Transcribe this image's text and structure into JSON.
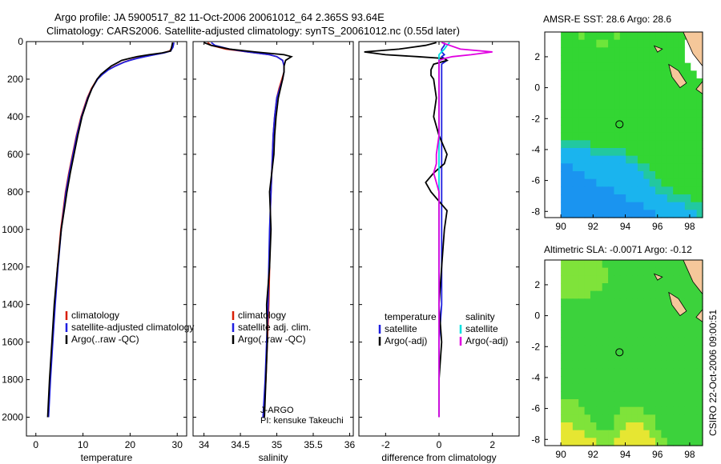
{
  "header": {
    "line1": "Argo profile: JA 5900517_82 11-Oct-2006 20061012_64 2.365S 93.64E",
    "line2": "Climatology: CARS2006. Satellite-adjusted climatology: synTS_20061012.nc (0.55d later)"
  },
  "side_label": "CSIRO 22-Oct-2006 09:00:51",
  "colors": {
    "climatology": "#d81e05",
    "satellite": "#1f1fe0",
    "argo": "#000000",
    "salinity_satellite": "#00e0e0",
    "salinity_argo": "#e000e0",
    "land": "#f5c79a"
  },
  "chart_data": [
    {
      "id": "temperature",
      "type": "line",
      "xlabel": "temperature",
      "ylabel": "",
      "xlim": [
        -2,
        32
      ],
      "ylim": [
        0,
        2100
      ],
      "y_inverted": true,
      "xticks": [
        0,
        10,
        20,
        30
      ],
      "yticks": [
        0,
        200,
        400,
        600,
        800,
        1000,
        1200,
        1400,
        1600,
        1800,
        2000
      ],
      "depth": [
        5,
        30,
        50,
        60,
        70,
        80,
        90,
        100,
        110,
        130,
        150,
        175,
        200,
        250,
        300,
        400,
        500,
        600,
        700,
        800,
        900,
        1000,
        1200,
        1400,
        1600,
        1800,
        2000
      ],
      "legend": [
        "climatology",
        "satellite-adjusted climatology",
        "Argo(..raw -QC)"
      ],
      "legend_position": "bottom-right",
      "series": [
        {
          "name": "climatology",
          "color": "#d81e05",
          "values": [
            29.1,
            28.9,
            28.4,
            27.0,
            25.0,
            23.0,
            21.2,
            19.8,
            18.6,
            16.8,
            15.3,
            14.0,
            13.0,
            11.8,
            10.9,
            9.6,
            8.6,
            7.8,
            7.0,
            6.3,
            5.8,
            5.3,
            4.6,
            4.0,
            3.5,
            3.0,
            2.6
          ]
        },
        {
          "name": "satellite-adjusted climatology",
          "color": "#1f1fe0",
          "values": [
            29.3,
            29.1,
            28.6,
            27.2,
            25.2,
            23.2,
            21.4,
            19.9,
            18.7,
            16.9,
            15.4,
            14.1,
            13.1,
            11.9,
            11.0,
            9.7,
            8.7,
            7.9,
            7.1,
            6.4,
            5.9,
            5.4,
            4.7,
            4.1,
            3.6,
            3.1,
            2.7
          ]
        },
        {
          "name": "Argo(..raw -QC)",
          "color": "#000000",
          "values": [
            29.0,
            28.8,
            28.6,
            26.8,
            24.0,
            21.5,
            19.8,
            18.2,
            17.5,
            16.0,
            15.0,
            13.8,
            13.0,
            11.9,
            11.1,
            9.8,
            8.9,
            8.1,
            7.3,
            6.6,
            6.0,
            5.4,
            4.6,
            3.9,
            3.4,
            2.9,
            2.5
          ]
        }
      ]
    },
    {
      "id": "salinity",
      "type": "line",
      "xlabel": "salinity",
      "ylabel": "",
      "xlim": [
        33.85,
        36.05
      ],
      "ylim": [
        0,
        2100
      ],
      "y_inverted": true,
      "xticks": [
        34,
        34.5,
        35,
        35.5,
        36
      ],
      "yticks": [
        0,
        200,
        400,
        600,
        800,
        1000,
        1200,
        1400,
        1600,
        1800,
        2000
      ],
      "depth": [
        5,
        20,
        40,
        55,
        70,
        80,
        100,
        130,
        160,
        200,
        250,
        300,
        400,
        500,
        600,
        700,
        800,
        900,
        1000,
        1200,
        1400,
        1600,
        1800,
        2000
      ],
      "legend": [
        "climatology",
        "satellite adj. clim.",
        "Argo(..raw -QC)"
      ],
      "legend_position": "bottom-right",
      "annotation": [
        "J-ARGO",
        "PI: kensuke Takeuchi"
      ],
      "series": [
        {
          "name": "climatology",
          "color": "#d81e05",
          "values": [
            34.05,
            34.1,
            34.3,
            34.6,
            34.9,
            35.0,
            35.08,
            35.1,
            35.1,
            35.07,
            35.03,
            35.0,
            34.97,
            34.95,
            34.94,
            34.93,
            34.92,
            34.91,
            34.91,
            34.9,
            34.89,
            34.87,
            34.85,
            34.82
          ]
        },
        {
          "name": "satellite adj. clim.",
          "color": "#1f1fe0",
          "values": [
            34.1,
            34.15,
            34.35,
            34.6,
            34.9,
            35.0,
            35.08,
            35.1,
            35.1,
            35.08,
            35.04,
            35.0,
            34.97,
            34.95,
            34.94,
            34.93,
            34.92,
            34.91,
            34.9,
            34.89,
            34.88,
            34.86,
            34.84,
            34.81
          ]
        },
        {
          "name": "Argo(..raw -QC)",
          "color": "#000000",
          "values": [
            34.0,
            34.1,
            34.35,
            34.7,
            35.1,
            35.2,
            35.12,
            35.1,
            35.1,
            35.08,
            35.05,
            35.02,
            34.99,
            34.97,
            34.96,
            34.93,
            34.9,
            34.91,
            34.92,
            34.9,
            34.86,
            34.87,
            34.85,
            34.83
          ]
        }
      ]
    },
    {
      "id": "difference",
      "type": "line",
      "xlabel": "difference from climatology",
      "ylabel": "",
      "xlim": [
        -3,
        3
      ],
      "ylim": [
        0,
        2100
      ],
      "y_inverted": true,
      "xticks": [
        -2,
        0,
        2
      ],
      "yticks": [
        0,
        200,
        400,
        600,
        800,
        1000,
        1200,
        1400,
        1600,
        1800,
        2000
      ],
      "legend_left_title": "temperature",
      "legend_right_title": "salinity",
      "legend_left": [
        "satellite",
        "Argo(-adj)"
      ],
      "legend_right": [
        "satellite",
        "Argo(-adj)"
      ],
      "legend_position": "bottom",
      "depth": [
        5,
        20,
        40,
        55,
        70,
        80,
        90,
        100,
        120,
        150,
        180,
        200,
        300,
        400,
        500,
        600,
        650,
        700,
        750,
        800,
        900,
        1000,
        1200,
        1400,
        1600,
        1800,
        2000
      ],
      "series": [
        {
          "name": "temperature satellite",
          "color": "#1f1fe0",
          "values": [
            0.2,
            0.2,
            0.1,
            0.1,
            0.2,
            0.1,
            0.2,
            0.3,
            0.1,
            0.1,
            0.1,
            0.1,
            0.1,
            0.1,
            0.1,
            0.1,
            0.1,
            0.1,
            0.1,
            0.1,
            0.1,
            0.1,
            0.1,
            0.1,
            0.0,
            0.0,
            0.0
          ]
        },
        {
          "name": "temperature Argo(-adj)",
          "color": "#000000",
          "values": [
            -0.1,
            -0.5,
            -1.5,
            -2.8,
            -2.0,
            -0.8,
            0.2,
            0.3,
            -0.2,
            -0.3,
            -0.3,
            -0.2,
            -0.1,
            -0.2,
            0.0,
            0.3,
            0.2,
            -0.2,
            -0.5,
            -0.3,
            0.3,
            0.2,
            0.1,
            0.0,
            0.1,
            0.0,
            0.0
          ]
        },
        {
          "name": "salinity satellite",
          "color": "#00e0e0",
          "values": [
            0.4,
            0.3,
            0.2,
            0.1,
            0.0,
            0.0,
            0.0,
            0.0,
            0.0,
            0.0,
            0.0,
            0.0,
            0.0,
            0.0,
            0.0,
            0.0,
            0.0,
            0.0,
            0.0,
            0.0,
            0.0,
            0.0,
            0.0,
            0.0,
            0.0,
            0.0,
            0.0
          ]
        },
        {
          "name": "salinity Argo(-adj)",
          "color": "#e000e0",
          "values": [
            0.1,
            0.4,
            0.8,
            2.0,
            1.2,
            0.5,
            0.2,
            0.0,
            0.0,
            0.0,
            0.0,
            0.0,
            0.0,
            0.0,
            0.0,
            -0.1,
            -0.1,
            -0.2,
            -0.1,
            0.0,
            0.0,
            0.0,
            0.0,
            0.0,
            0.0,
            0.0,
            0.0
          ]
        }
      ]
    },
    {
      "id": "sst_map",
      "type": "heatmap",
      "title": "AMSR-E SST: 28.6 Argo: 28.6",
      "xlim": [
        89.0,
        98.8
      ],
      "ylim": [
        -8.4,
        3.6
      ],
      "xticks": [
        90,
        92,
        94,
        96,
        98
      ],
      "yticks": [
        2,
        0,
        -2,
        -4,
        -6,
        -8
      ],
      "marker": {
        "lon": 93.64,
        "lat": -2.365
      },
      "rows_north_to_south": [
        "GGGLGGGGGLGGGGGGGGGGGGGW",
        "GGGGGGLLGGGGGGGGGGGGGWWW",
        "GGGGGGGGGGGGGGGGGGGGGWWW",
        "GGGGGGGGGGGGGGGGGGGGGWWW",
        "GGGGGGGGGGGGGGGGGGGGGGWW",
        "GGGGGGGGGGGGGGGGGGGGGGGW",
        "GGGGGGGGGGGGGGGGGGGGGGGG",
        "GGGGGGGGGGGGGGGGGGGGGGGG",
        "GGGGGGGGGGGGGGGGGGGGGGGG",
        "GGGGGGGGGGGGGGGGGGGGGGGG",
        "GGGGGGGGGGGGGGGGGGGGGGGG",
        "GGGGGGGGGGGGGGGGGGGGGGGG",
        "GGGGGGGGGGGGGGGGGGGGGGGG",
        "GGGGGGGGGGGGGGGGGGGGGGGG",
        "TTTTTGGGGGGGGGGGGGGGGGGG",
        "CCCCCTTTTTTGGGGGGGGGGGGG",
        "CCCCCCCCCCCTTGGGGGGGGGGG",
        "BBCCCCCCCCCCCTTGGGGGGGGG",
        "BBBBCCCCCCCCCCTTGGGGGGGG",
        "BBBBBBCCCCCCCCCTTGGGGGGG",
        "BBBBBBBBBCCCCCCCTTTGGGGG",
        "BBBBBBBBBBBCCCCCCCTTTTGG",
        "BBBBBBBBBBBBBBCCCCCCCTTT",
        "BBBBBBBBBBBBBBBBCCCCCCCT"
      ],
      "palette": {
        "G": "#33d633",
        "L": "#6ee63a",
        "T": "#22c8a0",
        "C": "#1ab4ee",
        "B": "#1a94f0",
        "W": "#ffffff"
      }
    },
    {
      "id": "sla_map",
      "type": "heatmap",
      "title": "Altimetric SLA: -0.0071 Argo: -0.12",
      "xlim": [
        89.0,
        98.8
      ],
      "ylim": [
        -8.4,
        3.6
      ],
      "xticks": [
        90,
        92,
        94,
        96,
        98
      ],
      "yticks": [
        2,
        0,
        -2,
        -4,
        -6,
        -8
      ],
      "marker": {
        "lon": 93.64,
        "lat": -2.365
      },
      "rows_north_to_south": [
        "LLLLLLLGGGGGGGGGGGGGGGGG",
        "LLLLLLLLGGGGGGGGGGGGGGGG",
        "LLLLLLLLGGGGGGGGGGGGGGGG",
        "LLLLLLLGGGGGGGGGGGGGGGGG",
        "LLLLLGGGGGGGGGGGGGGGGGGG",
        "GGGGGGGGGGGGGGGGGGGGGGGG",
        "GGGGGGGGGGGGGGGGGGGGGGGG",
        "GGGGGGGGGGGGGGGGGGGGGGGG",
        "GGGGGGGGGGGGGGGGGGGGGGGG",
        "GGGGGGGGGGGGGGGGGGGGGGGG",
        "GGGGGGGGGGGGGGGGGGGGGGGG",
        "GGGGGGGGGGGGGGGGGGGGGGGG",
        "GGGGGGGGGGGGGGGGGGGGGGGG",
        "GGGGGGGGGGGGGGGGGGGGGGGG",
        "GGGGGGGGGGGGGGGGGGGGGGGG",
        "GGGGGGGGGGGGGGGGGGGGGGGG",
        "GGGGGGGGGGGGGGGGGGGGGGGG",
        "GGGGGGGGGGGGGGGGGGGGGGGG",
        "LLLGGGGGGGGGGGGGGGGGGGGG",
        "LLLLGGGGGGLLLLGGGGGGGGGG",
        "LLLLLGGGGLLLLLLLGGGGGGGG",
        "YYLLLLGGGLLYYYLLGGGGGGGG",
        "YYYYLLLLLLYYYYYLLGGGGGGG",
        "YYYYYYLLLYYYYYYYLLGGGGGG"
      ],
      "palette": {
        "G": "#3cd23c",
        "L": "#7fe33a",
        "Y": "#e6e632"
      }
    }
  ]
}
